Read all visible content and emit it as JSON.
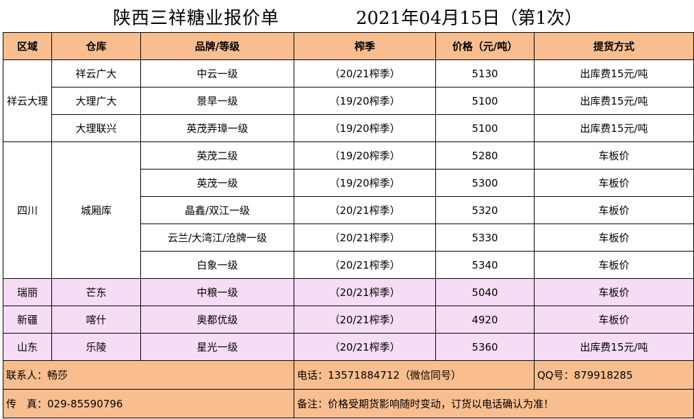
{
  "title": "陕西三祥糖业报价单",
  "date_line": "2021年04月15日（第1次）",
  "headers": {
    "region": "区域",
    "warehouse": "仓库",
    "brand": "品牌/等级",
    "season": "榨季",
    "price": "价格（元/吨）",
    "delivery": "提货方式"
  },
  "groups": [
    {
      "region": "祥云大理",
      "rows": [
        {
          "warehouse": "祥云广大",
          "brand": "中云一级",
          "season": "（20/21榨季）",
          "price": "5130",
          "delivery": "出库费15元/吨"
        },
        {
          "warehouse": "大理广大",
          "brand": "景旱一级",
          "season": "（19/20榨季）",
          "price": "5100",
          "delivery": "出库费15元/吨"
        },
        {
          "warehouse": "大理联兴",
          "brand": "英茂弄璋一级",
          "season": "（19/20榨季）",
          "price": "5100",
          "delivery": "出库费15元/吨"
        }
      ]
    },
    {
      "region": "四川",
      "warehouse": "城厢库",
      "rows": [
        {
          "brand": "英茂二级",
          "season": "（19/20榨季）",
          "price": "5280",
          "delivery": "车板价"
        },
        {
          "brand": "英茂一级",
          "season": "（19/20榨季）",
          "price": "5300",
          "delivery": "车板价"
        },
        {
          "brand": "晶鑫/双江一级",
          "season": "（20/21榨季）",
          "price": "5320",
          "delivery": "车板价"
        },
        {
          "brand": "云兰/大湾江/沧牌一级",
          "season": "（20/21榨季）",
          "price": "5330",
          "delivery": "车板价"
        },
        {
          "brand": "白象一级",
          "season": "（20/21榨季）",
          "price": "5340",
          "delivery": "车板价"
        }
      ]
    },
    {
      "rows": [
        {
          "region": "瑞丽",
          "warehouse": "芒东",
          "brand": "中粮一级",
          "season": "（20/21榨季）",
          "price": "5040",
          "delivery": "车板价"
        },
        {
          "region": "新疆",
          "warehouse": "喀什",
          "brand": "奥都优级",
          "season": "（20/21榨季）",
          "price": "4920",
          "delivery": "车板价"
        },
        {
          "region": "山东",
          "warehouse": "乐陵",
          "brand": "星光一级",
          "season": "（20/21榨季）",
          "price": "5360",
          "delivery": "出库费15元/吨"
        }
      ]
    }
  ],
  "footer": {
    "contact": "联系人：畅莎",
    "phone": "电话：13571884712（微信同号）",
    "qq": "QQ号：879918285",
    "fax": "传　真：029-85590796",
    "note": "备注：价格受期货影响随时变动，订货以电话确认为准！"
  },
  "colors": {
    "header_bg": "#f9be8f",
    "pink_row_bg": "#f7dcf5"
  }
}
